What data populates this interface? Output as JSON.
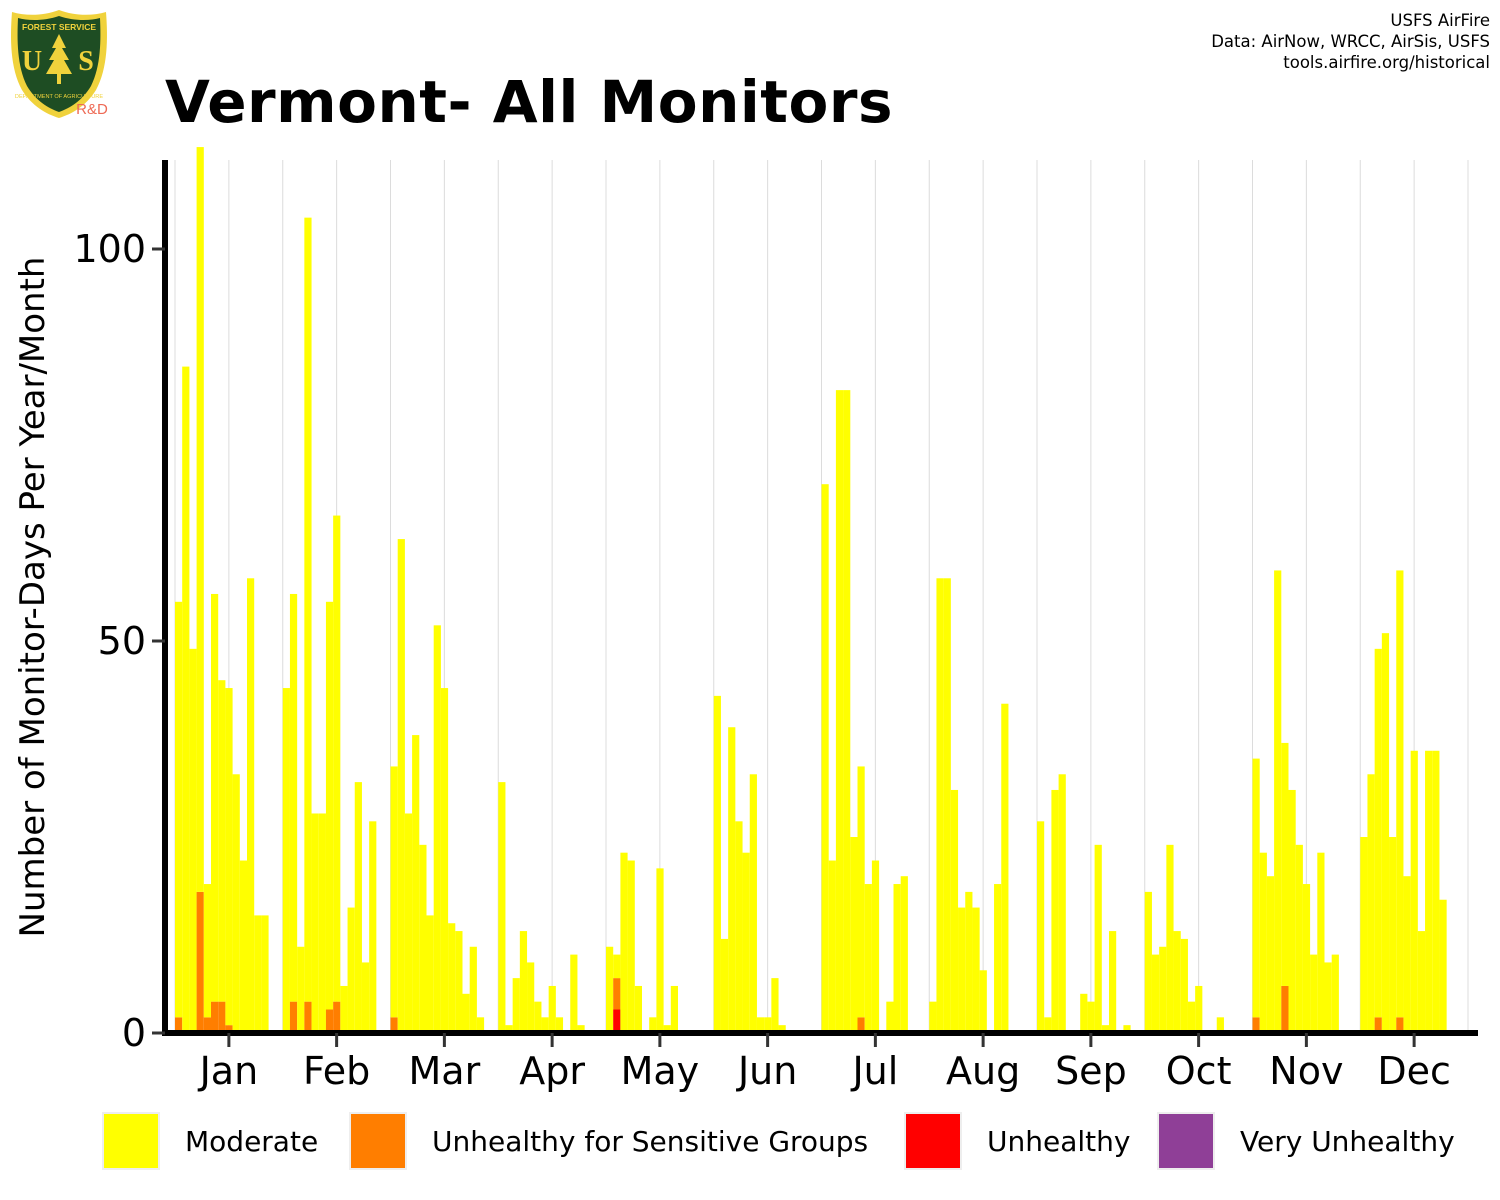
{
  "header": {
    "title": "Vermont- All Monitors",
    "credits": [
      "USFS AirFire",
      "Data: AirNow, WRCC, AirSis, USFS",
      "tools.airfire.org/historical"
    ]
  },
  "logo": {
    "top_text": "FOREST SERVICE",
    "initials": "USFS",
    "bottom_text": "DEPARTMENT OF AGRICULTURE",
    "sublabel": "R&D",
    "colors": {
      "shield": "#1e4d23",
      "rim": "#f0d23c",
      "sublabel": "#ee6a55"
    }
  },
  "chart_data": {
    "type": "bar",
    "stacked": true,
    "title": "Vermont- All Monitors",
    "xlabel": "",
    "ylabel": "Number of Monitor-Days Per Year/Month",
    "ylim": [
      0,
      112
    ],
    "yticks": [
      0,
      50,
      100
    ],
    "grid": "vertical lines only",
    "legend_position": "bottom",
    "categories": [
      "Jan",
      "Feb",
      "Mar",
      "Apr",
      "May",
      "Jun",
      "Jul",
      "Aug",
      "Sep",
      "Oct",
      "Nov",
      "Dec"
    ],
    "series": [
      {
        "name": "Moderate",
        "color": "#FFFF00"
      },
      {
        "name": "Unhealthy for Sensitive Groups",
        "color": "#FF7E00"
      },
      {
        "name": "Unhealthy",
        "color": "#FF0000"
      },
      {
        "name": "Very Unhealthy",
        "color": "#8F3F97"
      }
    ],
    "bars_per_month": 15,
    "note_order": "each month lists yearly totals (monitor-days) oldest to newest",
    "totals": [
      [
        55,
        85,
        49,
        113,
        19,
        56,
        45,
        44,
        33,
        22,
        58,
        15,
        15,
        0,
        0
      ],
      [
        44,
        56,
        11,
        104,
        28,
        28,
        55,
        66,
        6,
        16,
        32,
        9,
        27,
        0,
        0
      ],
      [
        34,
        63,
        28,
        38,
        24,
        15,
        52,
        44,
        14,
        13,
        5,
        11,
        2,
        0,
        0
      ],
      [
        32,
        1,
        7,
        13,
        9,
        4,
        2,
        6,
        2,
        0,
        10,
        1,
        0,
        0,
        0
      ],
      [
        11,
        10,
        23,
        22,
        6,
        0,
        2,
        21,
        1,
        6,
        0,
        0,
        0,
        0,
        0
      ],
      [
        43,
        12,
        39,
        27,
        23,
        33,
        2,
        2,
        7,
        1,
        0,
        0,
        0,
        0,
        0
      ],
      [
        70,
        22,
        82,
        82,
        25,
        34,
        19,
        22,
        0,
        4,
        19,
        20,
        0,
        0,
        0
      ],
      [
        4,
        58,
        58,
        31,
        16,
        18,
        16,
        8,
        0,
        19,
        42,
        0,
        0,
        0,
        0
      ],
      [
        27,
        2,
        31,
        33,
        0,
        0,
        5,
        4,
        24,
        1,
        13,
        0,
        1,
        0,
        0
      ],
      [
        18,
        10,
        11,
        24,
        13,
        12,
        4,
        6,
        0,
        0,
        2,
        0,
        0,
        0,
        0
      ],
      [
        35,
        23,
        20,
        59,
        37,
        31,
        24,
        19,
        10,
        23,
        9,
        10,
        0,
        0,
        0
      ],
      [
        25,
        33,
        49,
        51,
        25,
        59,
        20,
        36,
        13,
        36,
        36,
        17,
        0,
        0,
        0
      ]
    ],
    "usg": [
      [
        2,
        0,
        0,
        18,
        2,
        4,
        4,
        1,
        0,
        0,
        0,
        0,
        0,
        0,
        0
      ],
      [
        0,
        4,
        0,
        4,
        0,
        0,
        3,
        4,
        0,
        0,
        0,
        0,
        0,
        0,
        0
      ],
      [
        2,
        0,
        0,
        0,
        0,
        0,
        0,
        0,
        0,
        0,
        0,
        0,
        0,
        0,
        0
      ],
      [
        0,
        0,
        0,
        0,
        0,
        0,
        0,
        0,
        0,
        0,
        0,
        0,
        0,
        0,
        0
      ],
      [
        0,
        4,
        0,
        0,
        0,
        0,
        0,
        0,
        0,
        0,
        0,
        0,
        0,
        0,
        0
      ],
      [
        0,
        0,
        0,
        0,
        0,
        0,
        0,
        0,
        0,
        0,
        0,
        0,
        0,
        0,
        0
      ],
      [
        0,
        0,
        0,
        0,
        0,
        2,
        0,
        0,
        0,
        0,
        0,
        0,
        0,
        0,
        0
      ],
      [
        0,
        0,
        0,
        0,
        0,
        0,
        0,
        0,
        0,
        0,
        0,
        0,
        0,
        0,
        0
      ],
      [
        0,
        0,
        0,
        0,
        0,
        0,
        0,
        0,
        0,
        0,
        0,
        0,
        0,
        0,
        0
      ],
      [
        0,
        0,
        0,
        0,
        0,
        0,
        0,
        0,
        0,
        0,
        0,
        0,
        0,
        0,
        0
      ],
      [
        2,
        0,
        0,
        0,
        6,
        0,
        0,
        0,
        0,
        0,
        0,
        0,
        0,
        0,
        0
      ],
      [
        0,
        0,
        2,
        0,
        0,
        2,
        0,
        0,
        0,
        0,
        0,
        0,
        0,
        0,
        0
      ]
    ],
    "unhealthy": [
      [
        0,
        0,
        0,
        0,
        0,
        0,
        0,
        0,
        0,
        0,
        0,
        0,
        0,
        0,
        0
      ],
      [
        0,
        0,
        0,
        0,
        0,
        0,
        0,
        0,
        0,
        0,
        0,
        0,
        0,
        0,
        0
      ],
      [
        0,
        0,
        0,
        0,
        0,
        0,
        0,
        0,
        0,
        0,
        0,
        0,
        0,
        0,
        0
      ],
      [
        0,
        0,
        0,
        0,
        0,
        0,
        0,
        0,
        0,
        0,
        0,
        0,
        0,
        0,
        0
      ],
      [
        0,
        3,
        0,
        0,
        0,
        0,
        0,
        0,
        0,
        0,
        0,
        0,
        0,
        0,
        0
      ],
      [
        0,
        0,
        0,
        0,
        0,
        0,
        0,
        0,
        0,
        0,
        0,
        0,
        0,
        0,
        0
      ],
      [
        0,
        0,
        0,
        0,
        0,
        0,
        0,
        0,
        0,
        0,
        0,
        0,
        0,
        0,
        0
      ],
      [
        0,
        0,
        0,
        0,
        0,
        0,
        0,
        0,
        0,
        0,
        0,
        0,
        0,
        0,
        0
      ],
      [
        0,
        0,
        0,
        0,
        0,
        0,
        0,
        0,
        0,
        0,
        0,
        0,
        0,
        0,
        0
      ],
      [
        0,
        0,
        0,
        0,
        0,
        0,
        0,
        0,
        0,
        0,
        0,
        0,
        0,
        0,
        0
      ],
      [
        0,
        0,
        0,
        0,
        0,
        0,
        0,
        0,
        0,
        0,
        0,
        0,
        0,
        0,
        0
      ],
      [
        0,
        0,
        0,
        0,
        0,
        0,
        0,
        0,
        0,
        0,
        0,
        0,
        0,
        0,
        0
      ]
    ]
  }
}
